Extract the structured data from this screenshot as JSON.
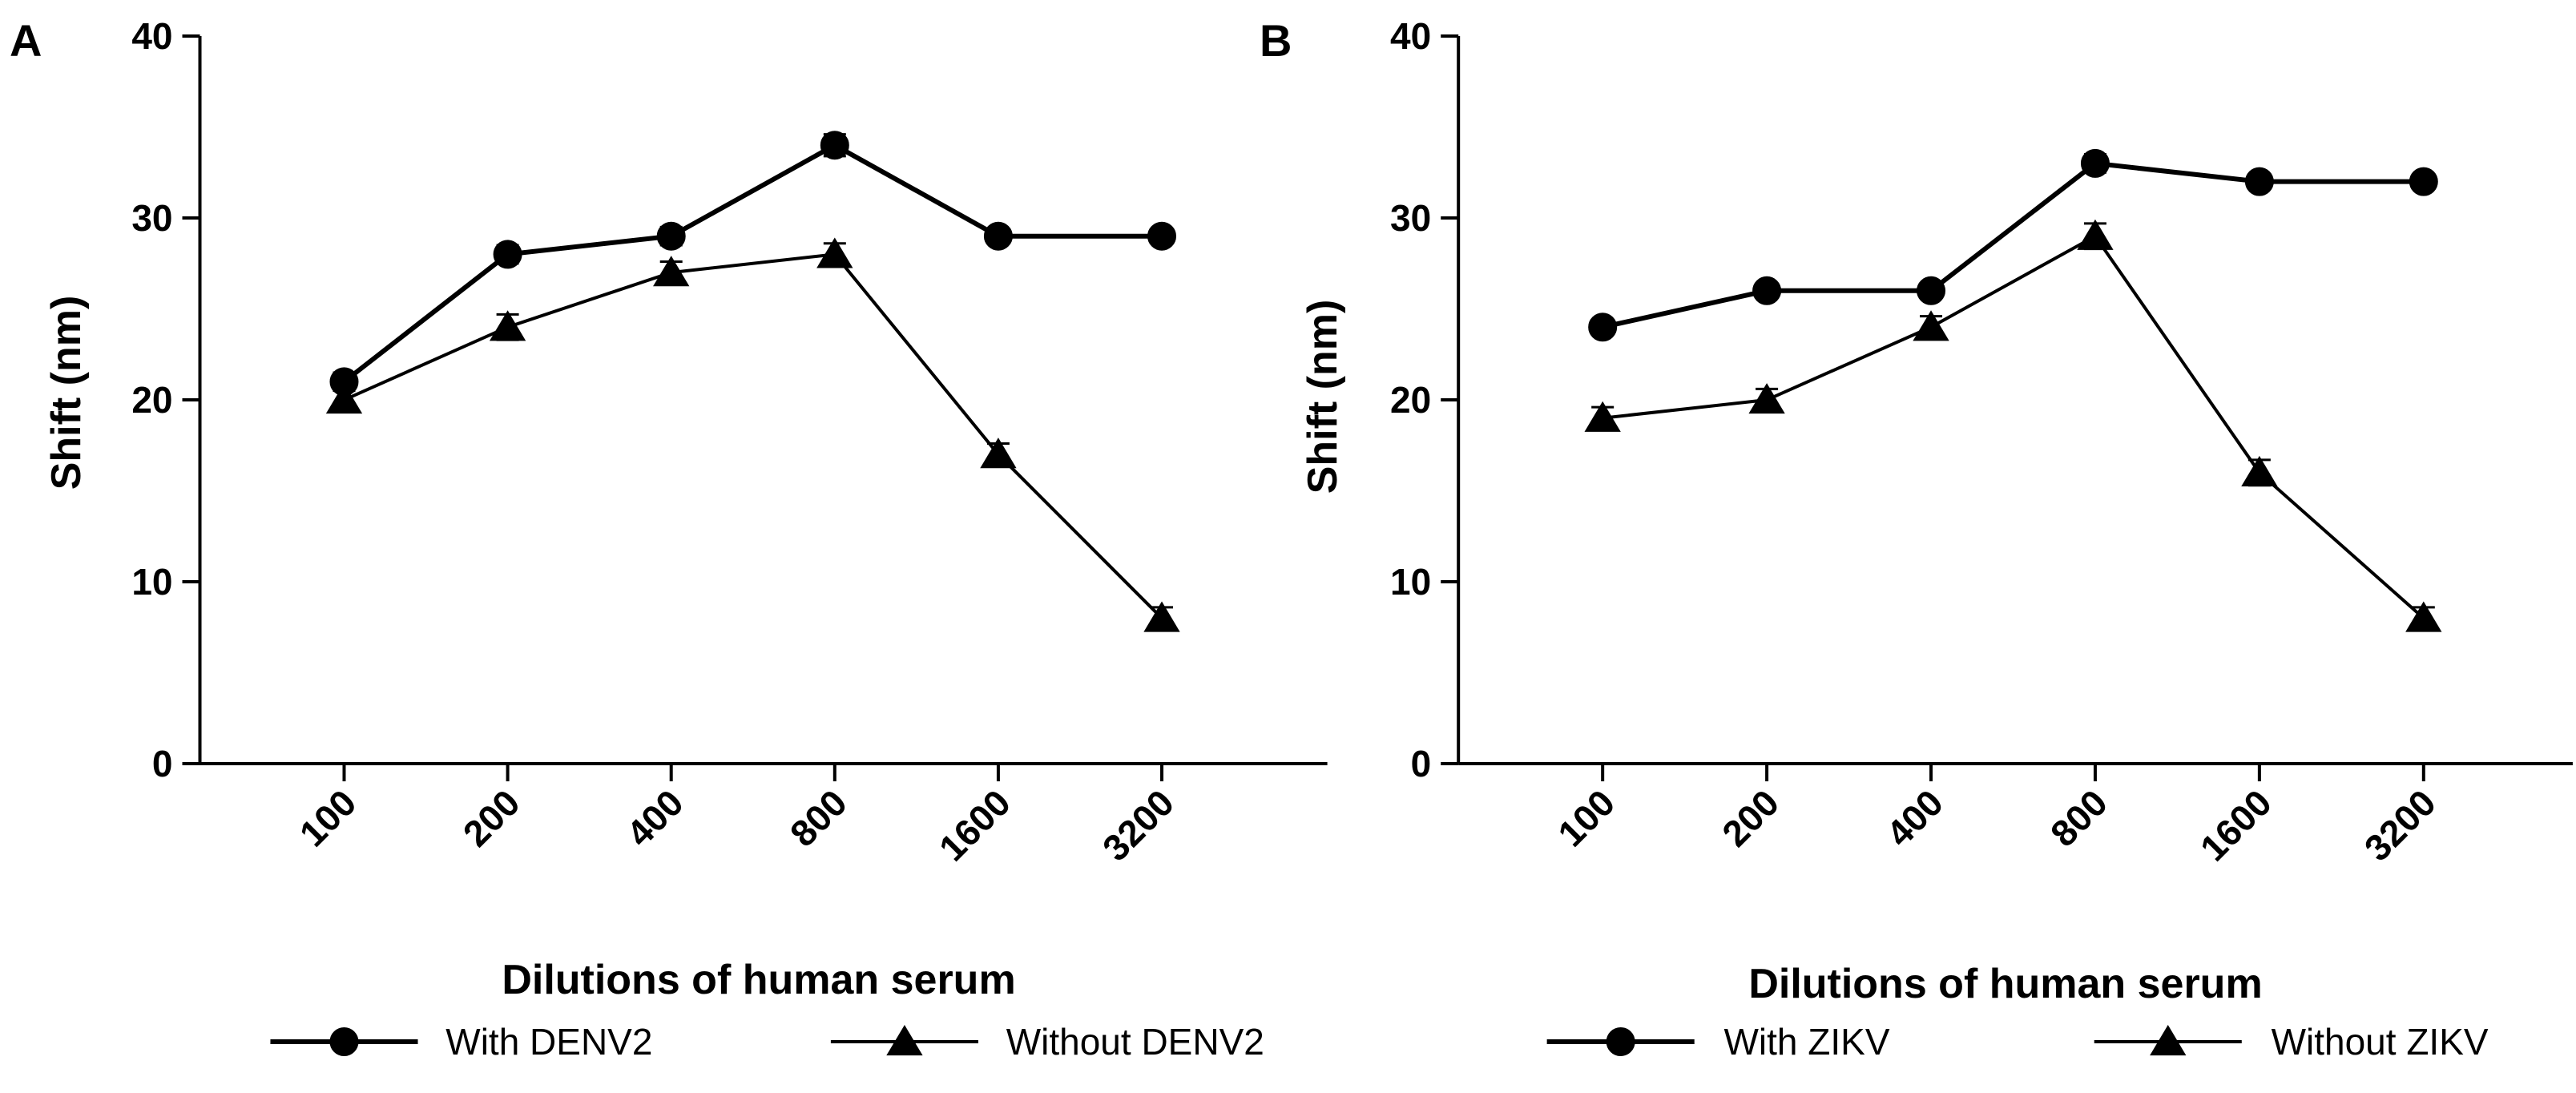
{
  "chart_data": [
    {
      "panel": "A",
      "type": "line",
      "title": "",
      "xlabel": "Dilutions of human serum",
      "ylabel": "Shift (nm)",
      "categories": [
        "100",
        "200",
        "400",
        "800",
        "1600",
        "3200"
      ],
      "ylim": [
        0,
        40
      ],
      "yticks": [
        "0",
        "10",
        "20",
        "30",
        "40"
      ],
      "legend_position": "bottom",
      "grid": false,
      "series": [
        {
          "name": "With DENV2",
          "marker": "circle",
          "values": [
            21,
            28,
            29,
            34,
            29,
            29
          ],
          "errors": [
            0.5,
            0.5,
            0.5,
            0.6,
            0.4,
            0.4
          ]
        },
        {
          "name": "Without DENV2",
          "marker": "triangle",
          "values": [
            20,
            24,
            27,
            28,
            17,
            8
          ],
          "errors": [
            0.6,
            0.7,
            0.6,
            0.6,
            0.6,
            0.6
          ]
        }
      ]
    },
    {
      "panel": "B",
      "type": "line",
      "title": "",
      "xlabel": "Dilutions of human serum",
      "ylabel": "Shift (nm)",
      "categories": [
        "100",
        "200",
        "400",
        "800",
        "1600",
        "3200"
      ],
      "ylim": [
        0,
        40
      ],
      "yticks": [
        "0",
        "10",
        "20",
        "30",
        "40"
      ],
      "legend_position": "bottom",
      "grid": false,
      "series": [
        {
          "name": "With ZIKV",
          "marker": "circle",
          "values": [
            24,
            26,
            26,
            33,
            32,
            32
          ],
          "errors": [
            0.4,
            0.4,
            0.4,
            0.5,
            0.4,
            0.4
          ]
        },
        {
          "name": "Without ZIKV",
          "marker": "triangle",
          "values": [
            19,
            20,
            24,
            29,
            16,
            8
          ],
          "errors": [
            0.6,
            0.6,
            0.6,
            0.7,
            0.7,
            0.6
          ]
        }
      ]
    }
  ]
}
